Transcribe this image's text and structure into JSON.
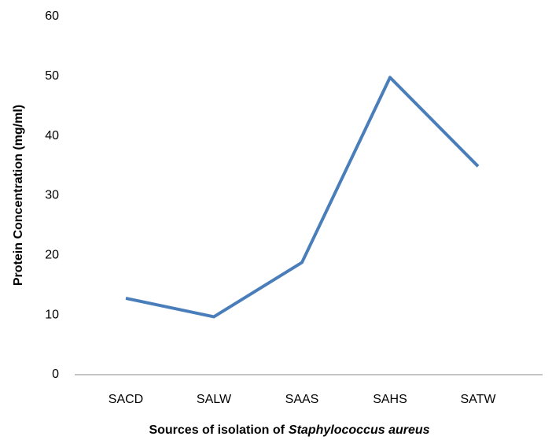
{
  "chart_data": {
    "type": "line",
    "y_label": "Protein Concentration (mg/ml)",
    "x_label": {
      "text": "Sources of isolation of",
      "italic": "Staphylococcus aureus"
    },
    "categories": [
      "SACD",
      "SALW",
      "SAAS",
      "SAHS",
      "SATW"
    ],
    "series": [
      {
        "name": "Protein Concentration",
        "color": "#4a7ebb",
        "values": [
          12.8,
          9.7,
          18.8,
          49.8,
          34.9
        ]
      }
    ],
    "ylim": [
      0,
      60
    ],
    "yticks": [
      0,
      10,
      20,
      30,
      40,
      50,
      60
    ],
    "grid": false
  }
}
